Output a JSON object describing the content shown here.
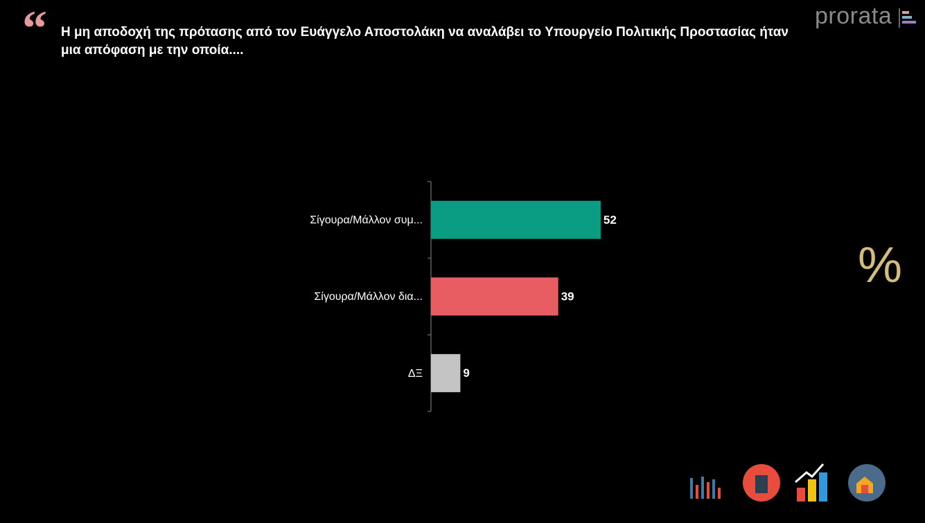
{
  "logo": "prorata",
  "symbol": "%",
  "chart_data": {
    "type": "bar",
    "orientation": "horizontal",
    "title": "Η μη αποδοχή της πρότασης από τον Ευάγγελο Αποστολάκη να αναλάβει το Υπουργείο Πολιτικής Προστασίας ήταν μια απόφαση με την οποία....",
    "categories": [
      "Σίγουρα/Μάλλον συμ...",
      "Σίγουρα/Μάλλον δια...",
      "ΔΞ"
    ],
    "values": [
      52,
      39,
      9
    ],
    "colors": [
      "#0b9c84",
      "#e75d62",
      "#c4c4c4"
    ]
  }
}
